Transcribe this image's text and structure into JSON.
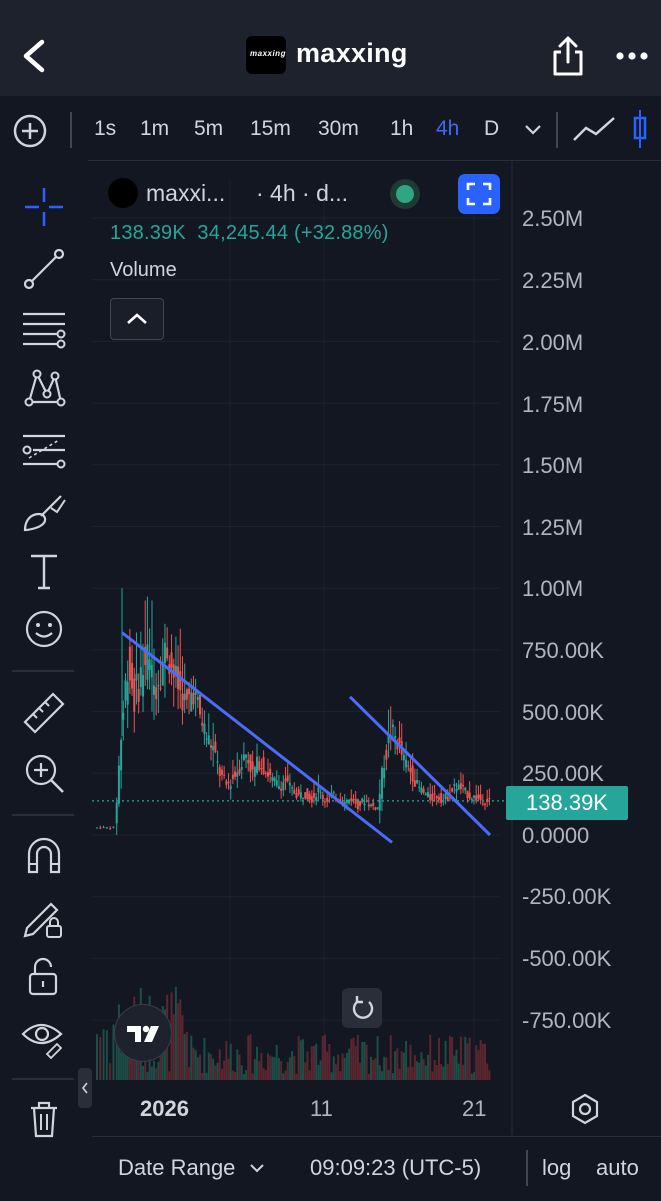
{
  "header": {
    "title": "maxxing",
    "logo_text": "maxxing",
    "back_icon": "chevron-left-icon",
    "share_icon": "share-icon",
    "more_icon": "more-horizontal-icon"
  },
  "timeframes": {
    "options": [
      "1s",
      "1m",
      "5m",
      "15m",
      "30m",
      "1h",
      "4h",
      "D"
    ],
    "active": "4h"
  },
  "left_toolbar": {
    "tools": [
      "crosshair-icon",
      "trendline-icon",
      "horizontal-lines-icon",
      "pattern-icon",
      "fib-icon",
      "brush-icon",
      "text-icon",
      "emoji-icon",
      "ruler-icon",
      "zoom-in-icon",
      "magnet-icon",
      "lock-drawing-icon",
      "unlock-icon",
      "eye-icon",
      "trash-icon"
    ]
  },
  "legend": {
    "symbol": "maxxi...",
    "interval": "· 4h · d...",
    "stats": "138.39K  34,245.44 (+32.88%)",
    "volume_label": "Volume",
    "status": "live"
  },
  "price_axis": {
    "labels": [
      "2.50M",
      "2.25M",
      "2.00M",
      "1.75M",
      "1.50M",
      "1.25M",
      "1.00M",
      "750.00K",
      "500.00K",
      "250.00K",
      "0.0000",
      "-250.00K",
      "-500.00K",
      "-750.00K"
    ],
    "current_price": "138.39K"
  },
  "time_axis": {
    "labels": [
      "2026",
      "11",
      "21"
    ]
  },
  "bottom_bar": {
    "date_range": "Date Range",
    "clock": "09:09:23 (UTC-5)",
    "log": "log",
    "auto": "auto"
  },
  "colors": {
    "up": "#26a69a",
    "down": "#ef5350",
    "trendline": "#4a6cf7",
    "accent": "#2962ff",
    "background": "#131722"
  },
  "chart_data": {
    "type": "candlestick",
    "title": "",
    "interval": "4h",
    "ylim": [
      -750000,
      2500000
    ],
    "current_price": 138390,
    "close_series_approx": [
      30000,
      30000,
      30000,
      400000,
      700000,
      550000,
      650000,
      720000,
      600000,
      680000,
      760000,
      650000,
      580000,
      520000,
      600000,
      480000,
      400000,
      350000,
      250000,
      200000,
      230000,
      280000,
      330000,
      250000,
      300000,
      260000,
      220000,
      200000,
      220000,
      180000,
      160000,
      170000,
      150000,
      180000,
      140000,
      160000,
      150000,
      130000,
      150000,
      120000,
      140000,
      120000,
      110000,
      300000,
      420000,
      380000,
      300000,
      260000,
      200000,
      170000,
      150000,
      160000,
      140000,
      170000,
      200000,
      180000,
      160000,
      150000,
      140000,
      138390
    ],
    "trendlines": [
      {
        "name": "",
        "from": [
          0,
          820000
        ],
        "to": [
          1,
          80000
        ]
      },
      {
        "name": "",
        "from": [
          0,
          560000
        ],
        "to": [
          1,
          80000
        ]
      }
    ]
  }
}
